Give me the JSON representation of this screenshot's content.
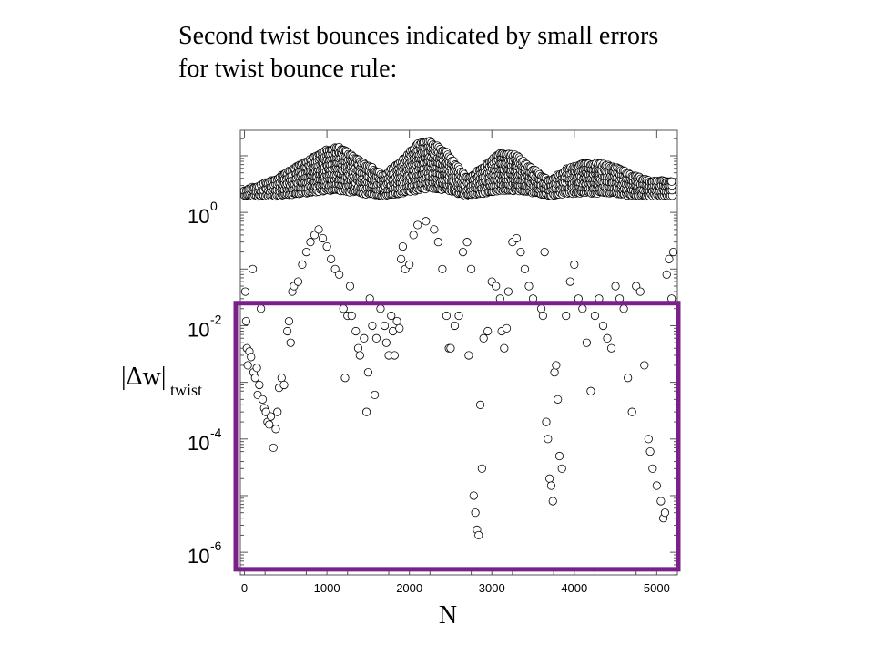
{
  "slide": {
    "title_line1": "Second twist bounces indicated by small errors",
    "title_line2": "for twist bounce rule:"
  },
  "chart_data": {
    "type": "scatter",
    "xlabel": "N",
    "ylabel_main": "|Δw|",
    "ylabel_sub": "twist",
    "x_range": [
      -50,
      5250
    ],
    "y_log10_range": [
      -6.4,
      1.45
    ],
    "y_scale": "log",
    "x_ticks": [
      "0",
      "1000",
      "2000",
      "3000",
      "4000",
      "5000"
    ],
    "y_ticks": [
      {
        "base": "10",
        "exp": "0"
      },
      {
        "base": "10",
        "exp": "-2"
      },
      {
        "base": "10",
        "exp": "-4"
      },
      {
        "base": "10",
        "exp": "-6"
      }
    ],
    "marker": "open-circle",
    "highlight_box": {
      "color": "#7b1f8a",
      "x_range": [
        -50,
        5250
      ],
      "y_range": [
        5e-07,
        0.025
      ]
    },
    "band_envelope": {
      "description_x": [
        0,
        150,
        400,
        700,
        1000,
        1150,
        1400,
        1700,
        1900,
        2100,
        2250,
        2450,
        2700,
        2900,
        3100,
        3300,
        3500,
        3700,
        3900,
        4100,
        4300,
        4500,
        4700,
        4900,
        5100,
        5200
      ],
      "upper_log10": [
        0.4,
        0.45,
        0.6,
        0.85,
        1.1,
        1.15,
        0.9,
        0.65,
        0.9,
        1.2,
        1.25,
        1.05,
        0.6,
        0.8,
        1.05,
        1.0,
        0.75,
        0.55,
        0.75,
        0.85,
        0.85,
        0.8,
        0.65,
        0.55,
        0.55,
        0.55
      ],
      "lower_log10": [
        0.3,
        0.3,
        0.3,
        0.35,
        0.4,
        0.4,
        0.35,
        0.3,
        0.35,
        0.4,
        0.45,
        0.4,
        0.3,
        0.35,
        0.4,
        0.4,
        0.35,
        0.3,
        0.35,
        0.35,
        0.35,
        0.35,
        0.3,
        0.3,
        0.3,
        0.3
      ]
    },
    "points": [
      [
        10,
        0.04
      ],
      [
        20,
        0.012
      ],
      [
        30,
        0.004
      ],
      [
        40,
        0.002
      ],
      [
        60,
        0.0035
      ],
      [
        80,
        0.0028
      ],
      [
        100,
        0.1
      ],
      [
        110,
        0.0015
      ],
      [
        130,
        0.0012
      ],
      [
        150,
        0.0018
      ],
      [
        160,
        0.0006
      ],
      [
        180,
        0.0009
      ],
      [
        200,
        0.02
      ],
      [
        220,
        0.0005
      ],
      [
        240,
        0.00035
      ],
      [
        260,
        0.0003
      ],
      [
        280,
        0.0002
      ],
      [
        300,
        0.00018
      ],
      [
        320,
        0.00025
      ],
      [
        350,
        7e-05
      ],
      [
        380,
        0.00015
      ],
      [
        400,
        0.0003
      ],
      [
        420,
        0.0008
      ],
      [
        450,
        0.0012
      ],
      [
        480,
        0.0009
      ],
      [
        520,
        0.008
      ],
      [
        540,
        0.012
      ],
      [
        560,
        0.005
      ],
      [
        580,
        0.04
      ],
      [
        600,
        0.05
      ],
      [
        650,
        0.06
      ],
      [
        700,
        0.12
      ],
      [
        750,
        0.2
      ],
      [
        800,
        0.3
      ],
      [
        850,
        0.4
      ],
      [
        900,
        0.5
      ],
      [
        950,
        0.35
      ],
      [
        1000,
        0.25
      ],
      [
        1050,
        0.15
      ],
      [
        1100,
        0.1
      ],
      [
        1150,
        0.08
      ],
      [
        1200,
        0.02
      ],
      [
        1220,
        0.0012
      ],
      [
        1250,
        0.015
      ],
      [
        1280,
        0.05
      ],
      [
        1300,
        0.015
      ],
      [
        1350,
        0.008
      ],
      [
        1380,
        0.004
      ],
      [
        1400,
        0.003
      ],
      [
        1450,
        0.006
      ],
      [
        1480,
        0.0003
      ],
      [
        1500,
        0.0015
      ],
      [
        1520,
        0.03
      ],
      [
        1550,
        0.01
      ],
      [
        1580,
        0.0006
      ],
      [
        1600,
        0.006
      ],
      [
        1650,
        0.02
      ],
      [
        1700,
        0.01
      ],
      [
        1720,
        0.005
      ],
      [
        1750,
        0.003
      ],
      [
        1780,
        0.015
      ],
      [
        1800,
        0.008
      ],
      [
        1820,
        0.003
      ],
      [
        1850,
        0.012
      ],
      [
        1880,
        0.009
      ],
      [
        1900,
        0.15
      ],
      [
        1920,
        0.25
      ],
      [
        1950,
        0.1
      ],
      [
        2000,
        0.12
      ],
      [
        2050,
        0.4
      ],
      [
        2100,
        0.6
      ],
      [
        2200,
        0.7
      ],
      [
        2300,
        0.5
      ],
      [
        2350,
        0.3
      ],
      [
        2400,
        0.1
      ],
      [
        2450,
        0.015
      ],
      [
        2480,
        0.004
      ],
      [
        2500,
        0.004
      ],
      [
        2550,
        0.01
      ],
      [
        2600,
        0.015
      ],
      [
        2650,
        0.2
      ],
      [
        2700,
        0.3
      ],
      [
        2720,
        0.003
      ],
      [
        2750,
        0.1
      ],
      [
        2780,
        1e-05
      ],
      [
        2800,
        5e-06
      ],
      [
        2820,
        2.5e-06
      ],
      [
        2840,
        2e-06
      ],
      [
        2860,
        0.0004
      ],
      [
        2880,
        3e-05
      ],
      [
        2900,
        0.006
      ],
      [
        2950,
        0.008
      ],
      [
        3000,
        0.06
      ],
      [
        3050,
        0.05
      ],
      [
        3100,
        0.03
      ],
      [
        3120,
        0.008
      ],
      [
        3150,
        0.004
      ],
      [
        3180,
        0.009
      ],
      [
        3200,
        0.04
      ],
      [
        3250,
        0.3
      ],
      [
        3300,
        0.35
      ],
      [
        3350,
        0.2
      ],
      [
        3400,
        0.1
      ],
      [
        3450,
        0.05
      ],
      [
        3500,
        0.03
      ],
      [
        3600,
        0.02
      ],
      [
        3620,
        0.015
      ],
      [
        3640,
        0.2
      ],
      [
        3660,
        0.0002
      ],
      [
        3680,
        0.0001
      ],
      [
        3700,
        2e-05
      ],
      [
        3720,
        1.5e-05
      ],
      [
        3740,
        8e-06
      ],
      [
        3760,
        0.0015
      ],
      [
        3780,
        0.002
      ],
      [
        3800,
        0.0005
      ],
      [
        3820,
        5e-05
      ],
      [
        3850,
        3e-05
      ],
      [
        3900,
        0.015
      ],
      [
        3950,
        0.06
      ],
      [
        4000,
        0.12
      ],
      [
        4050,
        0.03
      ],
      [
        4100,
        0.02
      ],
      [
        4150,
        0.005
      ],
      [
        4200,
        0.0007
      ],
      [
        4250,
        0.015
      ],
      [
        4300,
        0.03
      ],
      [
        4350,
        0.01
      ],
      [
        4400,
        0.006
      ],
      [
        4450,
        0.004
      ],
      [
        4500,
        0.05
      ],
      [
        4550,
        0.03
      ],
      [
        4600,
        0.02
      ],
      [
        4650,
        0.0012
      ],
      [
        4700,
        0.0003
      ],
      [
        4750,
        0.05
      ],
      [
        4800,
        0.04
      ],
      [
        4850,
        0.002
      ],
      [
        4900,
        0.0001
      ],
      [
        4920,
        6e-05
      ],
      [
        4950,
        3e-05
      ],
      [
        5000,
        1.5e-05
      ],
      [
        5050,
        8e-06
      ],
      [
        5080,
        4e-06
      ],
      [
        5100,
        5e-06
      ],
      [
        5120,
        0.08
      ],
      [
        5150,
        0.15
      ],
      [
        5180,
        0.03
      ],
      [
        5200,
        0.2
      ]
    ]
  }
}
